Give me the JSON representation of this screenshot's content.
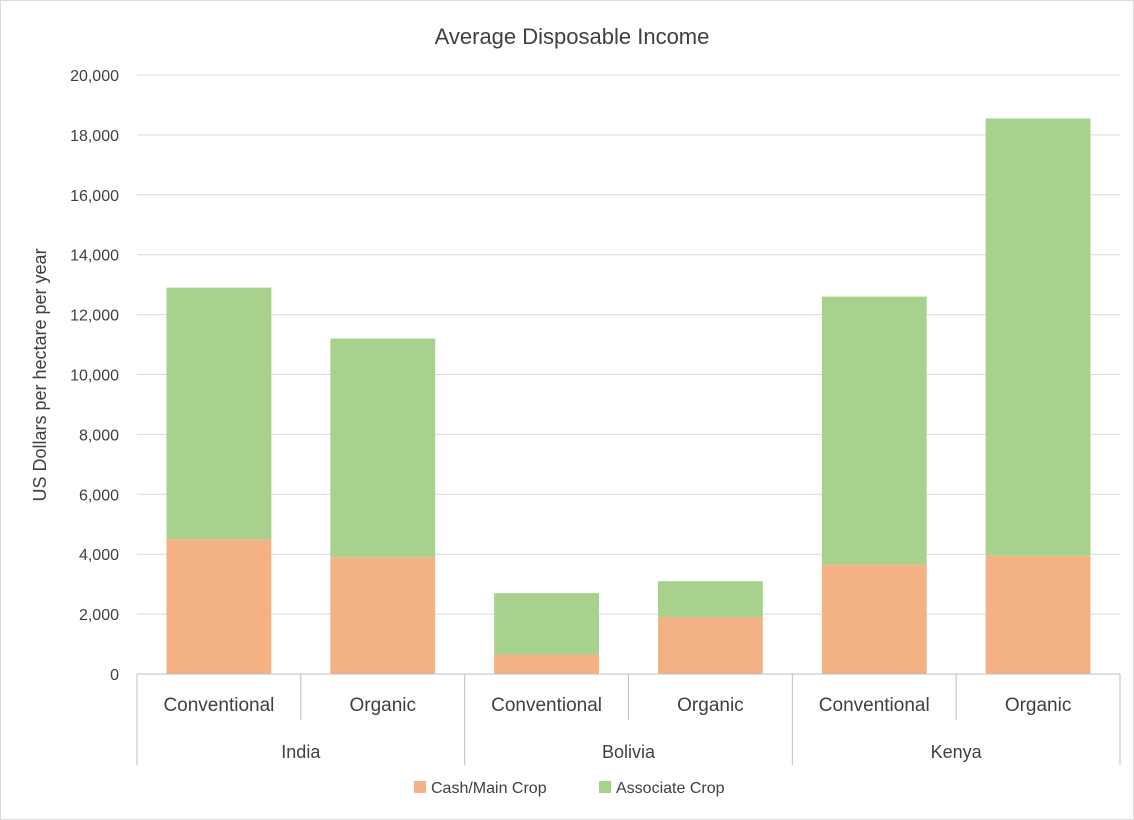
{
  "chart_data": {
    "type": "bar",
    "stacked": true,
    "title": "Average Disposable Income",
    "ylabel": "US Dollars per hectare per year",
    "xlabel": "",
    "ylim": [
      0,
      20000
    ],
    "yticks": [
      0,
      2000,
      4000,
      6000,
      8000,
      10000,
      12000,
      14000,
      16000,
      18000,
      20000
    ],
    "ytick_labels": [
      "0",
      "2,000",
      "4,000",
      "6,000",
      "8,000",
      "10,000",
      "12,000",
      "14,000",
      "16,000",
      "18,000",
      "20,000"
    ],
    "groups": [
      {
        "name": "India",
        "categories": [
          "Conventional",
          "Organic"
        ]
      },
      {
        "name": "Bolivia",
        "categories": [
          "Conventional",
          "Organic"
        ]
      },
      {
        "name": "Kenya",
        "categories": [
          "Conventional",
          "Organic"
        ]
      }
    ],
    "series": [
      {
        "name": "Cash/Main Crop",
        "color": "#f4b183",
        "values": [
          4500,
          3900,
          650,
          1900,
          3650,
          3950
        ]
      },
      {
        "name": "Associate Crop",
        "color": "#a9d18e",
        "values": [
          8400,
          7300,
          2050,
          1200,
          8950,
          14600
        ]
      }
    ],
    "grid": true,
    "legend_position": "bottom"
  }
}
